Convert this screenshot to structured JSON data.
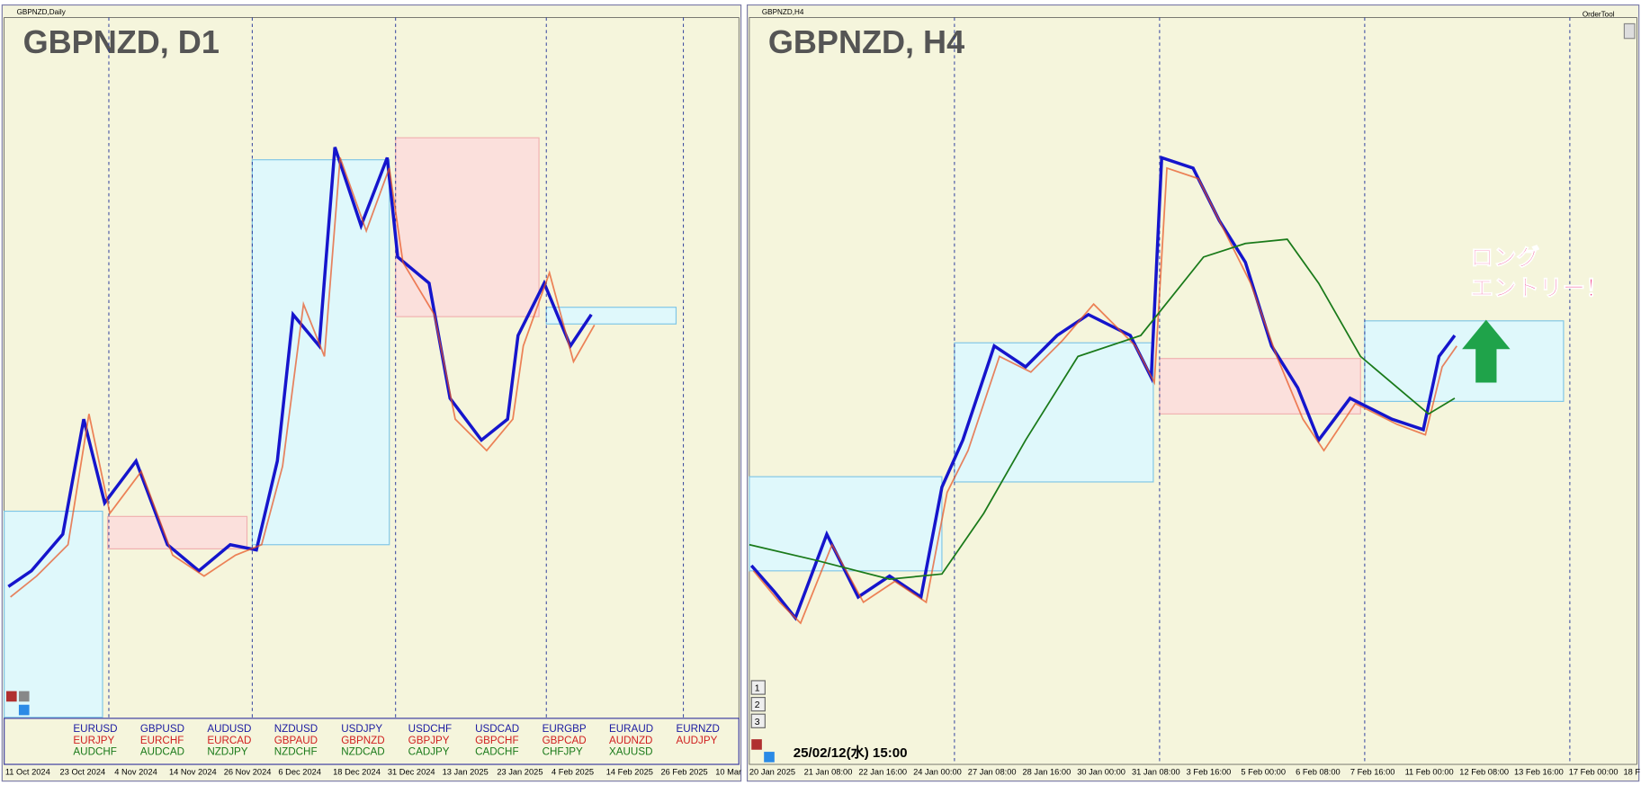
{
  "left_window": {
    "title": "GBPNZD,Daily",
    "chart_label": "GBPNZD, D1",
    "dates": [
      "11 Oct 2024",
      "23 Oct 2024",
      "4 Nov 2024",
      "14 Nov 2024",
      "26 Nov 2024",
      "6 Dec 2024",
      "18 Dec 2024",
      "31 Dec 2024",
      "13 Jan 2025",
      "23 Jan 2025",
      "4 Feb 2025",
      "14 Feb 2025",
      "26 Feb 2025",
      "10 Mar"
    ],
    "symbol_columns": [
      [
        "EURUSD",
        "EURJPY",
        "AUDCHF"
      ],
      [
        "GBPUSD",
        "EURCHF",
        "AUDCAD"
      ],
      [
        "AUDUSD",
        "EURCAD",
        "NZDJPY"
      ],
      [
        "NZDUSD",
        "GBPAUD",
        "NZDCHF"
      ],
      [
        "USDJPY",
        "GBPNZD",
        "NZDCAD"
      ],
      [
        "USDCHF",
        "GBPJPY",
        "CADJPY"
      ],
      [
        "USDCAD",
        "GBPCHF",
        "CADCHF"
      ],
      [
        "EURGBP",
        "GBPCAD",
        "CHFJPY"
      ],
      [
        "EURAUD",
        "AUDNZD",
        "XAUUSD"
      ],
      [
        "EURNZD",
        "AUDJPY"
      ]
    ]
  },
  "right_window": {
    "title": "GBPNZD,H4",
    "chart_label": "GBPNZD, H4",
    "tool": "OrderTool",
    "annotation": [
      "ロング",
      "エントリー！"
    ],
    "timestamp": "25/02/12(水) 15:00",
    "buttons": [
      "1",
      "2",
      "3"
    ],
    "dates": [
      "20 Jan 2025",
      "21 Jan 08:00",
      "22 Jan 16:00",
      "24 Jan 00:00",
      "27 Jan 08:00",
      "28 Jan 16:00",
      "30 Jan 00:00",
      "31 Jan 08:00",
      "3 Feb 16:00",
      "5 Feb 00:00",
      "6 Feb 08:00",
      "7 Feb 16:00",
      "11 Feb 00:00",
      "12 Feb 08:00",
      "13 Feb 16:00",
      "17 Feb 00:00",
      "18 F"
    ]
  }
}
